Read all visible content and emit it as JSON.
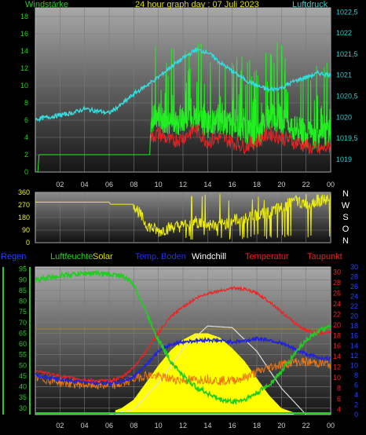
{
  "header": {
    "title": "24 hour graph day : 07 Juli 2023",
    "left_label": "Windstärke",
    "right_label": "Luftdruck"
  },
  "legend": {
    "regen": "Regen",
    "luftfeuchte": "Luftfeuchte",
    "solar": "Solar",
    "temp_boden": "Temp. Boden",
    "windchill": "Windchill",
    "temperatur": "Temperatur",
    "taupunkt": "Taupunkt"
  },
  "colors": {
    "wind": "#22ee22",
    "gust": "#ee2222",
    "pressure": "#33dddd",
    "direction": "#eeee11",
    "humidity": "#22cc22",
    "solar": "#ffff00",
    "soil": "#2222dd",
    "windchill": "#dddddd",
    "temperature": "#ee2222",
    "dewpoint": "#ee7711",
    "left_axis_text": "#22cc22",
    "right_axis_text": "#33cccc",
    "temp_axis_text": "#ee2222",
    "rain_axis_text": "#2244ff"
  },
  "chart_data": [
    {
      "type": "line",
      "panel": "wind-pressure",
      "x_ticks": [
        "02",
        "04",
        "06",
        "08",
        "10",
        "12",
        "14",
        "16",
        "18",
        "20",
        "22",
        "00"
      ],
      "y_left_ticks": [
        "0",
        "2",
        "4",
        "6",
        "8",
        "10",
        "12",
        "14",
        "16",
        "18"
      ],
      "y_left_range": [
        0,
        19
      ],
      "y_right_ticks": [
        "1019",
        "1019,5",
        "1020",
        "1020,5",
        "1021",
        "1021,5",
        "1022",
        "1022,5"
      ],
      "y_right_range": [
        1018.7,
        1022.6
      ],
      "series": [
        {
          "key": "pressure",
          "x": [
            0,
            1,
            2,
            3,
            4,
            5,
            6,
            7,
            8,
            9,
            10,
            11,
            12,
            13,
            14,
            15,
            16,
            17,
            18,
            19,
            20,
            21,
            22,
            23,
            24
          ],
          "values": [
            1019.95,
            1020.0,
            1020.05,
            1020.1,
            1020.2,
            1020.15,
            1020.1,
            1020.3,
            1020.55,
            1020.75,
            1020.95,
            1021.2,
            1021.4,
            1021.6,
            1021.55,
            1021.3,
            1021.1,
            1020.9,
            1020.75,
            1020.65,
            1020.7,
            1020.85,
            1020.95,
            1021.05,
            1021.0
          ]
        },
        {
          "key": "wind",
          "x": [
            0,
            0.2,
            0.3,
            9.3,
            9.4,
            10,
            11,
            12,
            13,
            14,
            15,
            16,
            17,
            18,
            19,
            20,
            21,
            22,
            23,
            24
          ],
          "values": [
            0,
            0,
            2,
            2,
            6,
            6.5,
            5.5,
            6,
            6.5,
            5.5,
            6,
            5.5,
            5,
            4,
            6.5,
            6,
            5,
            4.5,
            4,
            4.5
          ]
        },
        {
          "key": "gust",
          "x": [
            9.4,
            10,
            11,
            12,
            13,
            14,
            15,
            16,
            17,
            18,
            19,
            20,
            21,
            22,
            23,
            24
          ],
          "values": [
            4,
            4.5,
            3.5,
            4,
            5,
            3.5,
            4,
            3.5,
            3,
            3.5,
            4.5,
            4,
            3.5,
            3,
            2.5,
            3
          ]
        }
      ]
    },
    {
      "type": "line",
      "panel": "wind-direction",
      "y_ticks": [
        "0",
        "90",
        "180",
        "270",
        "360"
      ],
      "y_range": [
        0,
        360
      ],
      "compass": [
        "N",
        "W",
        "S",
        "O",
        "N"
      ],
      "series": [
        {
          "key": "direction",
          "x": [
            0,
            6,
            6.1,
            8,
            9,
            10,
            11,
            12,
            13,
            14,
            15,
            16,
            17,
            18,
            19,
            20,
            21,
            22,
            23,
            24
          ],
          "values": [
            290,
            290,
            275,
            275,
            130,
            80,
            110,
            120,
            150,
            130,
            120,
            160,
            170,
            200,
            210,
            250,
            300,
            280,
            300,
            310
          ]
        }
      ]
    },
    {
      "type": "line",
      "panel": "temperature-humidity",
      "y_humidity_ticks": [
        "30",
        "35",
        "40",
        "45",
        "50",
        "55",
        "60",
        "65",
        "70",
        "75",
        "80",
        "85",
        "90",
        "95"
      ],
      "y_humidity_range": [
        27,
        96
      ],
      "y_temp_ticks": [
        "4",
        "6",
        "8",
        "10",
        "12",
        "14",
        "16",
        "18",
        "20",
        "22",
        "24",
        "26",
        "28",
        "30"
      ],
      "y_temp_range": [
        3,
        31
      ],
      "y_rain_ticks": [
        "0",
        "2",
        "4",
        "6",
        "8",
        "10",
        "12",
        "14",
        "16",
        "18",
        "20",
        "22",
        "24",
        "26",
        "28",
        "30"
      ],
      "series": [
        {
          "key": "humidity",
          "x": [
            0,
            1,
            2,
            3,
            4,
            5,
            6,
            7,
            8,
            9,
            10,
            11,
            12,
            13,
            14,
            15,
            16,
            17,
            18,
            19,
            20,
            21,
            22,
            23,
            24
          ],
          "values": [
            90,
            91,
            92,
            92.5,
            93,
            93,
            92.5,
            92,
            88,
            75,
            62,
            52,
            45,
            40,
            37,
            34,
            33,
            34,
            37,
            41,
            47,
            55,
            62,
            66,
            68
          ]
        },
        {
          "key": "temperature",
          "x": [
            0,
            1,
            2,
            3,
            4,
            5,
            6,
            7,
            8,
            9,
            10,
            11,
            12,
            13,
            14,
            15,
            16,
            17,
            18,
            19,
            20,
            21,
            22,
            23,
            24
          ],
          "values": [
            11.5,
            10.8,
            10.3,
            9.9,
            9.6,
            9.4,
            9.4,
            10,
            12,
            15,
            18.5,
            21.5,
            23.5,
            25,
            26,
            26.5,
            27,
            26.8,
            26,
            24.5,
            22.5,
            20.5,
            19,
            18.5,
            18.5
          ]
        },
        {
          "key": "soil",
          "x": [
            0,
            1,
            2,
            3,
            4,
            5,
            6,
            7,
            8,
            9,
            10,
            11,
            12,
            13,
            14,
            15,
            16,
            17,
            18,
            19,
            20,
            21,
            22,
            23,
            24
          ],
          "values": [
            10.5,
            10,
            9.7,
            9.4,
            9.2,
            9,
            9,
            9.2,
            10.2,
            12.5,
            15,
            16.3,
            16.8,
            17,
            17.2,
            17,
            16.8,
            17,
            17.4,
            17.2,
            16.5,
            15.5,
            14.5,
            13.8,
            13.5
          ]
        },
        {
          "key": "dewpoint",
          "x": [
            0,
            1,
            2,
            3,
            4,
            5,
            6,
            7,
            8,
            9,
            10,
            11,
            12,
            13,
            14,
            15,
            16,
            17,
            18,
            19,
            20,
            21,
            22,
            23,
            24
          ],
          "values": [
            10,
            9.6,
            9.2,
            8.9,
            8.7,
            8.6,
            8.5,
            8.8,
            9.8,
            10.5,
            10.2,
            9.8,
            9.5,
            9.6,
            9.8,
            9.4,
            9.5,
            10,
            11,
            12,
            12.5,
            13,
            13,
            12.8,
            12.5
          ]
        },
        {
          "key": "windchill",
          "x": [
            0,
            6,
            8,
            10,
            12,
            14,
            16,
            18,
            20,
            22,
            24
          ],
          "values": [
            3,
            3,
            4,
            9,
            15.5,
            19.8,
            19.5,
            15,
            8,
            3,
            3
          ]
        },
        {
          "key": "solar",
          "x": [
            6.5,
            7,
            8,
            9,
            10,
            11,
            12,
            13,
            14,
            15,
            16,
            17,
            18,
            19,
            20,
            21
          ],
          "values": [
            29,
            30,
            34,
            42,
            50,
            57,
            62,
            65,
            65,
            63,
            58,
            52,
            44,
            36,
            30,
            28
          ]
        },
        {
          "key": "reference",
          "x": [
            0,
            24
          ],
          "values": [
            67,
            67
          ]
        }
      ]
    }
  ]
}
